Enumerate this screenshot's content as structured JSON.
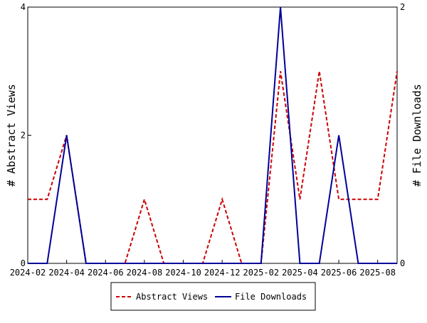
{
  "chart_data": {
    "type": "line",
    "x": [
      "2024-02",
      "2024-03",
      "2024-04",
      "2024-05",
      "2024-06",
      "2024-07",
      "2024-08",
      "2024-09",
      "2024-10",
      "2024-11",
      "2024-12",
      "2025-01",
      "2025-02",
      "2025-03",
      "2025-04",
      "2025-05",
      "2025-06",
      "2025-07",
      "2025-08",
      "2025-09"
    ],
    "x_tick_labels": [
      "2024-02",
      "2024-04",
      "2024-06",
      "2024-08",
      "2024-10",
      "2024-12",
      "2025-02",
      "2025-04",
      "2025-06",
      "2025-08"
    ],
    "series": [
      {
        "name": "Abstract Views",
        "axis": "left",
        "color": "#cc0000",
        "dash": "dashed",
        "values": [
          1,
          1,
          2,
          0,
          0,
          0,
          1,
          0,
          0,
          0,
          1,
          0,
          0,
          3,
          1,
          3,
          1,
          1,
          1,
          3
        ]
      },
      {
        "name": "File Downloads",
        "axis": "right",
        "color": "#000099",
        "dash": "solid",
        "values": [
          0,
          0,
          1,
          0,
          0,
          0,
          0,
          0,
          0,
          0,
          0,
          0,
          0,
          2,
          0,
          0,
          1,
          0,
          0,
          0
        ]
      }
    ],
    "ylabel_left": "# Abstract Views",
    "ylabel_right": "# File Downloads",
    "ylim_left": [
      0,
      4
    ],
    "ylim_right": [
      0,
      2
    ],
    "y_ticks_left": [
      "0",
      "2",
      "4"
    ],
    "y_ticks_right": [
      "0",
      "2"
    ],
    "grid": false,
    "legend_position": "bottom-center"
  }
}
